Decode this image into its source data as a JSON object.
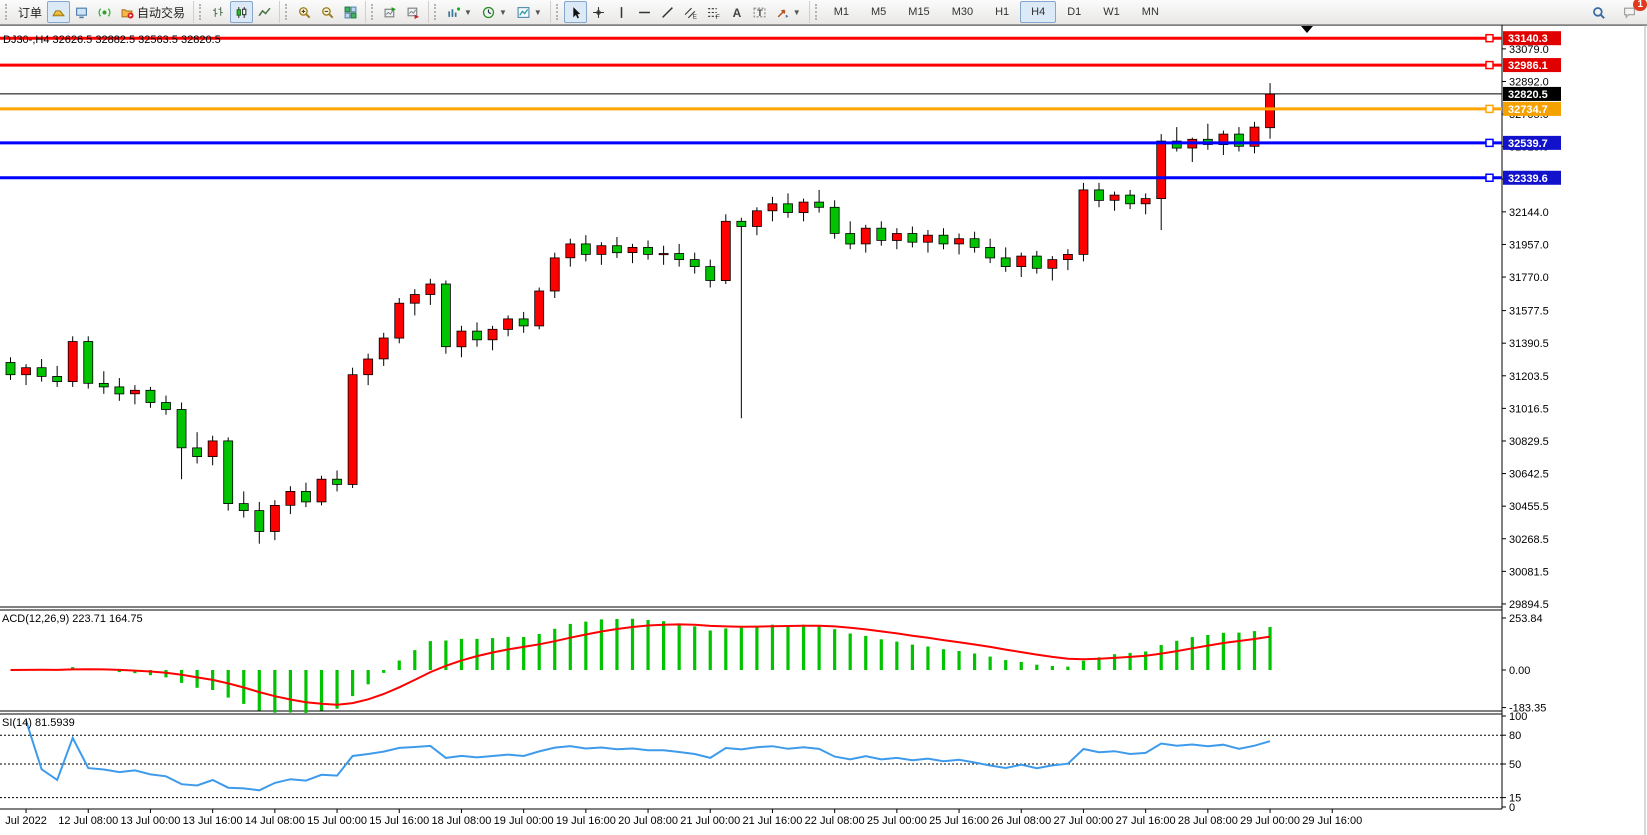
{
  "toolbar": {
    "groups": [
      {
        "name": "trade",
        "items": [
          {
            "name": "new-order-button",
            "label": "订单"
          },
          {
            "name": "chart-profile-button",
            "icon": "ingot",
            "selected": true
          },
          {
            "name": "metaeditor-button",
            "icon": "editor"
          },
          {
            "name": "signals-button",
            "icon": "signal"
          },
          {
            "name": "autotrading-button",
            "icon": "folder",
            "label": "自动交易"
          }
        ]
      },
      {
        "name": "chart-type",
        "items": [
          {
            "name": "bar-chart-button",
            "icon": "bars"
          },
          {
            "name": "candlestick-chart-button",
            "icon": "candles",
            "selected": true
          },
          {
            "name": "line-chart-button",
            "icon": "linechart"
          }
        ]
      },
      {
        "name": "zoom",
        "items": [
          {
            "name": "zoom-in-button",
            "icon": "zoomin"
          },
          {
            "name": "zoom-out-button",
            "icon": "zoomout"
          },
          {
            "name": "tile-windows-button",
            "icon": "tile"
          }
        ]
      },
      {
        "name": "scroll",
        "items": [
          {
            "name": "chart-shift-button",
            "icon": "shiftend"
          },
          {
            "name": "auto-scroll-button",
            "icon": "autoscroll"
          }
        ]
      },
      {
        "name": "insert",
        "items": [
          {
            "name": "indicators-button",
            "icon": "indicators",
            "dropdown": true
          },
          {
            "name": "periods-button",
            "icon": "clock",
            "dropdown": true
          },
          {
            "name": "templates-button",
            "icon": "template",
            "dropdown": true
          }
        ]
      },
      {
        "name": "drawing",
        "items": [
          {
            "name": "cursor-button",
            "icon": "cursor",
            "selected": true
          },
          {
            "name": "crosshair-button",
            "icon": "crosshair"
          },
          {
            "name": "vertical-line-button",
            "icon": "vline"
          },
          {
            "name": "horizontal-line-button",
            "icon": "hline"
          },
          {
            "name": "trendline-button",
            "icon": "trend"
          },
          {
            "name": "equidistant-channel-button",
            "icon": "channel"
          },
          {
            "name": "fibonacci-button",
            "icon": "fibo"
          },
          {
            "name": "text-button",
            "icon": "textA"
          },
          {
            "name": "text-label-button",
            "icon": "labelT"
          },
          {
            "name": "arrows-button",
            "icon": "arrows",
            "dropdown": true
          }
        ]
      },
      {
        "name": "timeframes",
        "items": [
          {
            "name": "tf-m1",
            "label": "M1"
          },
          {
            "name": "tf-m5",
            "label": "M5"
          },
          {
            "name": "tf-m15",
            "label": "M15"
          },
          {
            "name": "tf-m30",
            "label": "M30"
          },
          {
            "name": "tf-h1",
            "label": "H1"
          },
          {
            "name": "tf-h4",
            "label": "H4",
            "selected": true
          },
          {
            "name": "tf-d1",
            "label": "D1"
          },
          {
            "name": "tf-w1",
            "label": "W1"
          },
          {
            "name": "tf-mn",
            "label": "MN"
          }
        ]
      }
    ],
    "right": [
      {
        "name": "search-button",
        "icon": "search"
      },
      {
        "name": "notifications-button",
        "icon": "chat",
        "badge": "1"
      }
    ]
  },
  "chart": {
    "symbol_line": "DJ30-,H4  32626.5 32882.5 32563.5 32820.5",
    "price_ticks": [
      {
        "value": 33079.0,
        "label": "33079.0"
      },
      {
        "value": 32892.0,
        "label": "32892.0"
      },
      {
        "value": 32705.0,
        "label": "32705.0"
      },
      {
        "value": 32518.0,
        "label": "32518.0"
      },
      {
        "value": 32331.0,
        "label": "32331.0"
      },
      {
        "value": 32144.0,
        "label": "32144.0"
      },
      {
        "value": 31957.0,
        "label": "31957.0"
      },
      {
        "value": 31770.0,
        "label": "31770.0"
      },
      {
        "value": 31577.5,
        "label": "31577.5"
      },
      {
        "value": 31390.5,
        "label": "31390.5"
      },
      {
        "value": 31203.5,
        "label": "31203.5"
      },
      {
        "value": 31016.5,
        "label": "31016.5"
      },
      {
        "value": 30829.5,
        "label": "30829.5"
      },
      {
        "value": 30642.5,
        "label": "30642.5"
      },
      {
        "value": 30455.5,
        "label": "30455.5"
      },
      {
        "value": 30268.5,
        "label": "30268.5"
      },
      {
        "value": 30081.5,
        "label": "30081.5"
      },
      {
        "value": 29894.5,
        "label": "29894.5"
      }
    ],
    "levels": [
      {
        "name": "resistance-line-1",
        "price": 33140.3,
        "label": "33140.3",
        "color": "#ff0000",
        "badge_bg": "#e00000",
        "thickness": 3,
        "handle": true
      },
      {
        "name": "resistance-line-2",
        "price": 32986.1,
        "label": "32986.1",
        "color": "#ff0000",
        "badge_bg": "#e00000",
        "thickness": 3,
        "handle": true
      },
      {
        "name": "last-price-line",
        "price": 32820.5,
        "label": "32820.5",
        "color": "#000000",
        "badge_bg": "#000000",
        "thickness": 1,
        "handle": false
      },
      {
        "name": "pivot-line",
        "price": 32734.7,
        "label": "32734.7",
        "color": "#ffa500",
        "badge_bg": "#f5a200",
        "thickness": 3,
        "handle": true
      },
      {
        "name": "support-line-1",
        "price": 32539.7,
        "label": "32539.7",
        "color": "#0000ff",
        "badge_bg": "#1212cc",
        "thickness": 3,
        "handle": true
      },
      {
        "name": "support-line-2",
        "price": 32339.6,
        "label": "32339.6",
        "color": "#0000ff",
        "badge_bg": "#1212cc",
        "thickness": 3,
        "handle": true
      }
    ]
  },
  "chart_data": {
    "type": "candlestick",
    "symbol": "DJ30-",
    "timeframe": "H4",
    "bull_color": "#ff0000",
    "bear_color": "#00c400",
    "wick_color": "#000000",
    "candles": [
      [
        "11 Jul 12:00",
        31280,
        31310,
        31180,
        31210
      ],
      [
        "11 Jul 16:00",
        31210,
        31270,
        31150,
        31250
      ],
      [
        "11 Jul 20:00",
        31250,
        31300,
        31170,
        31200
      ],
      [
        "12 Jul 00:00",
        31200,
        31260,
        31140,
        31170
      ],
      [
        "12 Jul 04:00",
        31170,
        31430,
        31140,
        31400
      ],
      [
        "12 Jul 08:00",
        31400,
        31430,
        31130,
        31160
      ],
      [
        "12 Jul 12:00",
        31160,
        31230,
        31100,
        31140
      ],
      [
        "12 Jul 16:00",
        31140,
        31190,
        31060,
        31100
      ],
      [
        "12 Jul 20:00",
        31100,
        31150,
        31040,
        31120
      ],
      [
        "13 Jul 00:00",
        31120,
        31140,
        31020,
        31050
      ],
      [
        "13 Jul 04:00",
        31050,
        31090,
        30980,
        31010
      ],
      [
        "13 Jul 08:00",
        31010,
        31050,
        30610,
        30790
      ],
      [
        "13 Jul 12:00",
        30790,
        30880,
        30700,
        30740
      ],
      [
        "13 Jul 16:00",
        30740,
        30860,
        30690,
        30830
      ],
      [
        "13 Jul 20:00",
        30830,
        30850,
        30430,
        30470
      ],
      [
        "14 Jul 00:00",
        30470,
        30540,
        30390,
        30430
      ],
      [
        "14 Jul 04:00",
        30430,
        30480,
        30240,
        30310
      ],
      [
        "14 Jul 08:00",
        30310,
        30490,
        30260,
        30460
      ],
      [
        "14 Jul 12:00",
        30460,
        30570,
        30410,
        30540
      ],
      [
        "14 Jul 16:00",
        30540,
        30590,
        30450,
        30480
      ],
      [
        "14 Jul 20:00",
        30480,
        30630,
        30460,
        30610
      ],
      [
        "15 Jul 00:00",
        30610,
        30660,
        30540,
        30580
      ],
      [
        "15 Jul 04:00",
        30580,
        31250,
        30560,
        31210
      ],
      [
        "15 Jul 08:00",
        31210,
        31330,
        31150,
        31300
      ],
      [
        "15 Jul 12:00",
        31300,
        31450,
        31260,
        31420
      ],
      [
        "15 Jul 16:00",
        31420,
        31650,
        31390,
        31620
      ],
      [
        "15 Jul 20:00",
        31620,
        31700,
        31550,
        31670
      ],
      [
        "18 Jul 00:00",
        31670,
        31760,
        31610,
        31730
      ],
      [
        "18 Jul 04:00",
        31730,
        31750,
        31330,
        31370
      ],
      [
        "18 Jul 08:00",
        31370,
        31490,
        31310,
        31460
      ],
      [
        "18 Jul 12:00",
        31460,
        31510,
        31370,
        31410
      ],
      [
        "18 Jul 16:00",
        31410,
        31490,
        31350,
        31470
      ],
      [
        "18 Jul 20:00",
        31470,
        31550,
        31430,
        31530
      ],
      [
        "19 Jul 00:00",
        31530,
        31570,
        31450,
        31490
      ],
      [
        "19 Jul 04:00",
        31490,
        31710,
        31470,
        31690
      ],
      [
        "19 Jul 08:00",
        31690,
        31910,
        31650,
        31880
      ],
      [
        "19 Jul 12:00",
        31880,
        31990,
        31830,
        31960
      ],
      [
        "19 Jul 16:00",
        31960,
        32010,
        31860,
        31900
      ],
      [
        "19 Jul 20:00",
        31900,
        31970,
        31840,
        31950
      ],
      [
        "20 Jul 00:00",
        31950,
        32000,
        31880,
        31910
      ],
      [
        "20 Jul 04:00",
        31910,
        31960,
        31850,
        31940
      ],
      [
        "20 Jul 08:00",
        31940,
        31980,
        31870,
        31900
      ],
      [
        "20 Jul 12:00",
        31900,
        31950,
        31840,
        31905
      ],
      [
        "20 Jul 16:00",
        31905,
        31960,
        31830,
        31870
      ],
      [
        "20 Jul 20:00",
        31870,
        31910,
        31790,
        31830
      ],
      [
        "21 Jul 00:00",
        31830,
        31870,
        31710,
        31750
      ],
      [
        "21 Jul 04:00",
        31750,
        32130,
        31730,
        32090
      ],
      [
        "21 Jul 08:00",
        32090,
        32110,
        30960,
        32060
      ],
      [
        "21 Jul 12:00",
        32060,
        32170,
        32010,
        32150
      ],
      [
        "21 Jul 16:00",
        32150,
        32230,
        32090,
        32190
      ],
      [
        "21 Jul 20:00",
        32190,
        32250,
        32110,
        32140
      ],
      [
        "22 Jul 00:00",
        32140,
        32220,
        32090,
        32200
      ],
      [
        "22 Jul 04:00",
        32200,
        32270,
        32140,
        32170
      ],
      [
        "22 Jul 08:00",
        32170,
        32210,
        31990,
        32020
      ],
      [
        "22 Jul 12:00",
        32020,
        32090,
        31930,
        31960
      ],
      [
        "22 Jul 16:00",
        31960,
        32070,
        31910,
        32050
      ],
      [
        "22 Jul 20:00",
        32050,
        32090,
        31950,
        31980
      ],
      [
        "25 Jul 00:00",
        31980,
        32050,
        31930,
        32020
      ],
      [
        "25 Jul 04:00",
        32020,
        32060,
        31940,
        31970
      ],
      [
        "25 Jul 08:00",
        31970,
        32040,
        31910,
        32010
      ],
      [
        "25 Jul 12:00",
        32010,
        32050,
        31930,
        31960
      ],
      [
        "25 Jul 16:00",
        31960,
        32020,
        31900,
        31990
      ],
      [
        "25 Jul 20:00",
        31990,
        32030,
        31910,
        31940
      ],
      [
        "26 Jul 00:00",
        31940,
        31990,
        31850,
        31880
      ],
      [
        "26 Jul 04:00",
        31880,
        31940,
        31800,
        31830
      ],
      [
        "26 Jul 08:00",
        31830,
        31910,
        31770,
        31890
      ],
      [
        "26 Jul 12:00",
        31890,
        31920,
        31790,
        31820
      ],
      [
        "26 Jul 16:00",
        31820,
        31890,
        31750,
        31870
      ],
      [
        "26 Jul 20:00",
        31870,
        31930,
        31810,
        31900
      ],
      [
        "27 Jul 00:00",
        31900,
        32310,
        31860,
        32270
      ],
      [
        "27 Jul 04:00",
        32270,
        32310,
        32170,
        32210
      ],
      [
        "27 Jul 08:00",
        32210,
        32260,
        32150,
        32240
      ],
      [
        "27 Jul 12:00",
        32240,
        32270,
        32160,
        32190
      ],
      [
        "27 Jul 16:00",
        32190,
        32250,
        32130,
        32220
      ],
      [
        "27 Jul 20:00",
        32220,
        32590,
        32040,
        32550
      ],
      [
        "28 Jul 00:00",
        32550,
        32630,
        32490,
        32510
      ],
      [
        "28 Jul 04:00",
        32510,
        32570,
        32430,
        32560
      ],
      [
        "28 Jul 08:00",
        32560,
        32650,
        32500,
        32530
      ],
      [
        "28 Jul 12:00",
        32530,
        32610,
        32470,
        32590
      ],
      [
        "28 Jul 16:00",
        32590,
        32630,
        32490,
        32520
      ],
      [
        "28 Jul 20:00",
        32520,
        32660,
        32480,
        32630
      ],
      [
        "29 Jul 00:00",
        32626.5,
        32882.5,
        32563.5,
        32820.5
      ]
    ],
    "time_labels": [
      {
        "i": 1,
        "text": "Jul 2022"
      },
      {
        "i": 5,
        "text": "12 Jul 08:00"
      },
      {
        "i": 9,
        "text": "13 Jul 00:00"
      },
      {
        "i": 13,
        "text": "13 Jul 16:00"
      },
      {
        "i": 17,
        "text": "14 Jul 08:00"
      },
      {
        "i": 21,
        "text": "15 Jul 00:00"
      },
      {
        "i": 25,
        "text": "15 Jul 16:00"
      },
      {
        "i": 29,
        "text": "18 Jul 08:00"
      },
      {
        "i": 33,
        "text": "19 Jul 00:00"
      },
      {
        "i": 37,
        "text": "19 Jul 16:00"
      },
      {
        "i": 41,
        "text": "20 Jul 08:00"
      },
      {
        "i": 45,
        "text": "21 Jul 00:00"
      },
      {
        "i": 49,
        "text": "21 Jul 16:00"
      },
      {
        "i": 53,
        "text": "22 Jul 08:00"
      },
      {
        "i": 57,
        "text": "25 Jul 00:00"
      },
      {
        "i": 61,
        "text": "25 Jul 16:00"
      },
      {
        "i": 65,
        "text": "26 Jul 08:00"
      },
      {
        "i": 69,
        "text": "27 Jul 00:00"
      },
      {
        "i": 73,
        "text": "27 Jul 16:00"
      },
      {
        "i": 77,
        "text": "28 Jul 08:00"
      },
      {
        "i": 81,
        "text": "29 Jul 00:00"
      },
      {
        "i": 85,
        "text": "29 Jul 16:00"
      }
    ],
    "macd": {
      "label": "ACD(12,26,9) 223.71 164.75",
      "params": [
        12,
        26,
        9
      ],
      "last_main": 223.71,
      "last_signal": 164.75,
      "hist_color": "#00c400",
      "signal_color": "#ff0000",
      "axis_labels": [
        {
          "value": 253.84,
          "label": "253.84"
        },
        {
          "value": 0,
          "label": "0.00"
        },
        {
          "value": -183.35,
          "label": "-183.35"
        }
      ]
    },
    "rsi": {
      "label": "SI(14) 81.5939",
      "period": 14,
      "last": 81.5939,
      "line_color": "#3e9bec",
      "levels": [
        80,
        50,
        15
      ],
      "axis_labels": [
        {
          "value": 100,
          "label": "100"
        },
        {
          "value": 80,
          "label": "80"
        },
        {
          "value": 50,
          "label": "50"
        },
        {
          "value": 15,
          "label": "15"
        },
        {
          "value": 0,
          "label": "0"
        }
      ]
    }
  }
}
